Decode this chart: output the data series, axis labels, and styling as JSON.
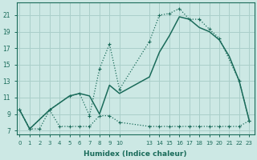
{
  "xlabel": "Humidex (Indice chaleur)",
  "bg_color": "#cce8e4",
  "line_color": "#1a6b5a",
  "grid_color": "#aacfca",
  "line_upper_x": [
    0,
    1,
    3,
    5,
    6,
    7,
    8,
    9,
    10,
    13,
    14,
    15,
    16,
    17,
    18,
    19,
    20,
    22,
    23
  ],
  "line_upper_y": [
    9.5,
    7.2,
    9.5,
    11.2,
    11.5,
    8.8,
    14.5,
    17.5,
    12.0,
    17.8,
    21.0,
    21.2,
    21.8,
    20.5,
    20.5,
    19.3,
    18.2,
    13.0,
    8.2
  ],
  "line_mid_x": [
    0,
    1,
    3,
    5,
    6,
    7,
    8,
    9,
    10,
    13,
    14,
    15,
    16,
    17,
    18,
    19,
    20,
    21,
    22,
    23
  ],
  "line_mid_y": [
    9.5,
    7.2,
    9.5,
    11.2,
    11.5,
    11.2,
    9.0,
    12.5,
    11.5,
    13.5,
    16.5,
    18.5,
    20.8,
    20.5,
    19.5,
    19.0,
    18.0,
    16.0,
    13.0,
    8.2
  ],
  "line_low_x": [
    0,
    1,
    2,
    3,
    4,
    5,
    6,
    7,
    8,
    9,
    10,
    13,
    14,
    15,
    16,
    17,
    18,
    19,
    20,
    21,
    22,
    23
  ],
  "line_low_y": [
    9.5,
    7.2,
    7.2,
    9.5,
    7.5,
    7.5,
    7.5,
    7.5,
    8.8,
    8.8,
    8.0,
    7.5,
    7.5,
    7.5,
    7.5,
    7.5,
    7.5,
    7.5,
    7.5,
    7.5,
    7.5,
    8.2
  ],
  "yticks": [
    7,
    9,
    11,
    13,
    15,
    17,
    19,
    21
  ],
  "xtick_labels": [
    "0",
    "1",
    "2",
    "3",
    "4",
    "5",
    "6",
    "7",
    "8",
    "9",
    "10",
    "13",
    "14",
    "15",
    "16",
    "17",
    "18",
    "19",
    "20",
    "21",
    "22",
    "23"
  ],
  "xtick_pos": [
    0,
    1,
    2,
    3,
    4,
    5,
    6,
    7,
    8,
    9,
    10,
    13,
    14,
    15,
    16,
    17,
    18,
    19,
    20,
    21,
    22,
    23
  ],
  "xlim": [
    -0.3,
    23.5
  ],
  "ylim": [
    6.5,
    22.5
  ]
}
